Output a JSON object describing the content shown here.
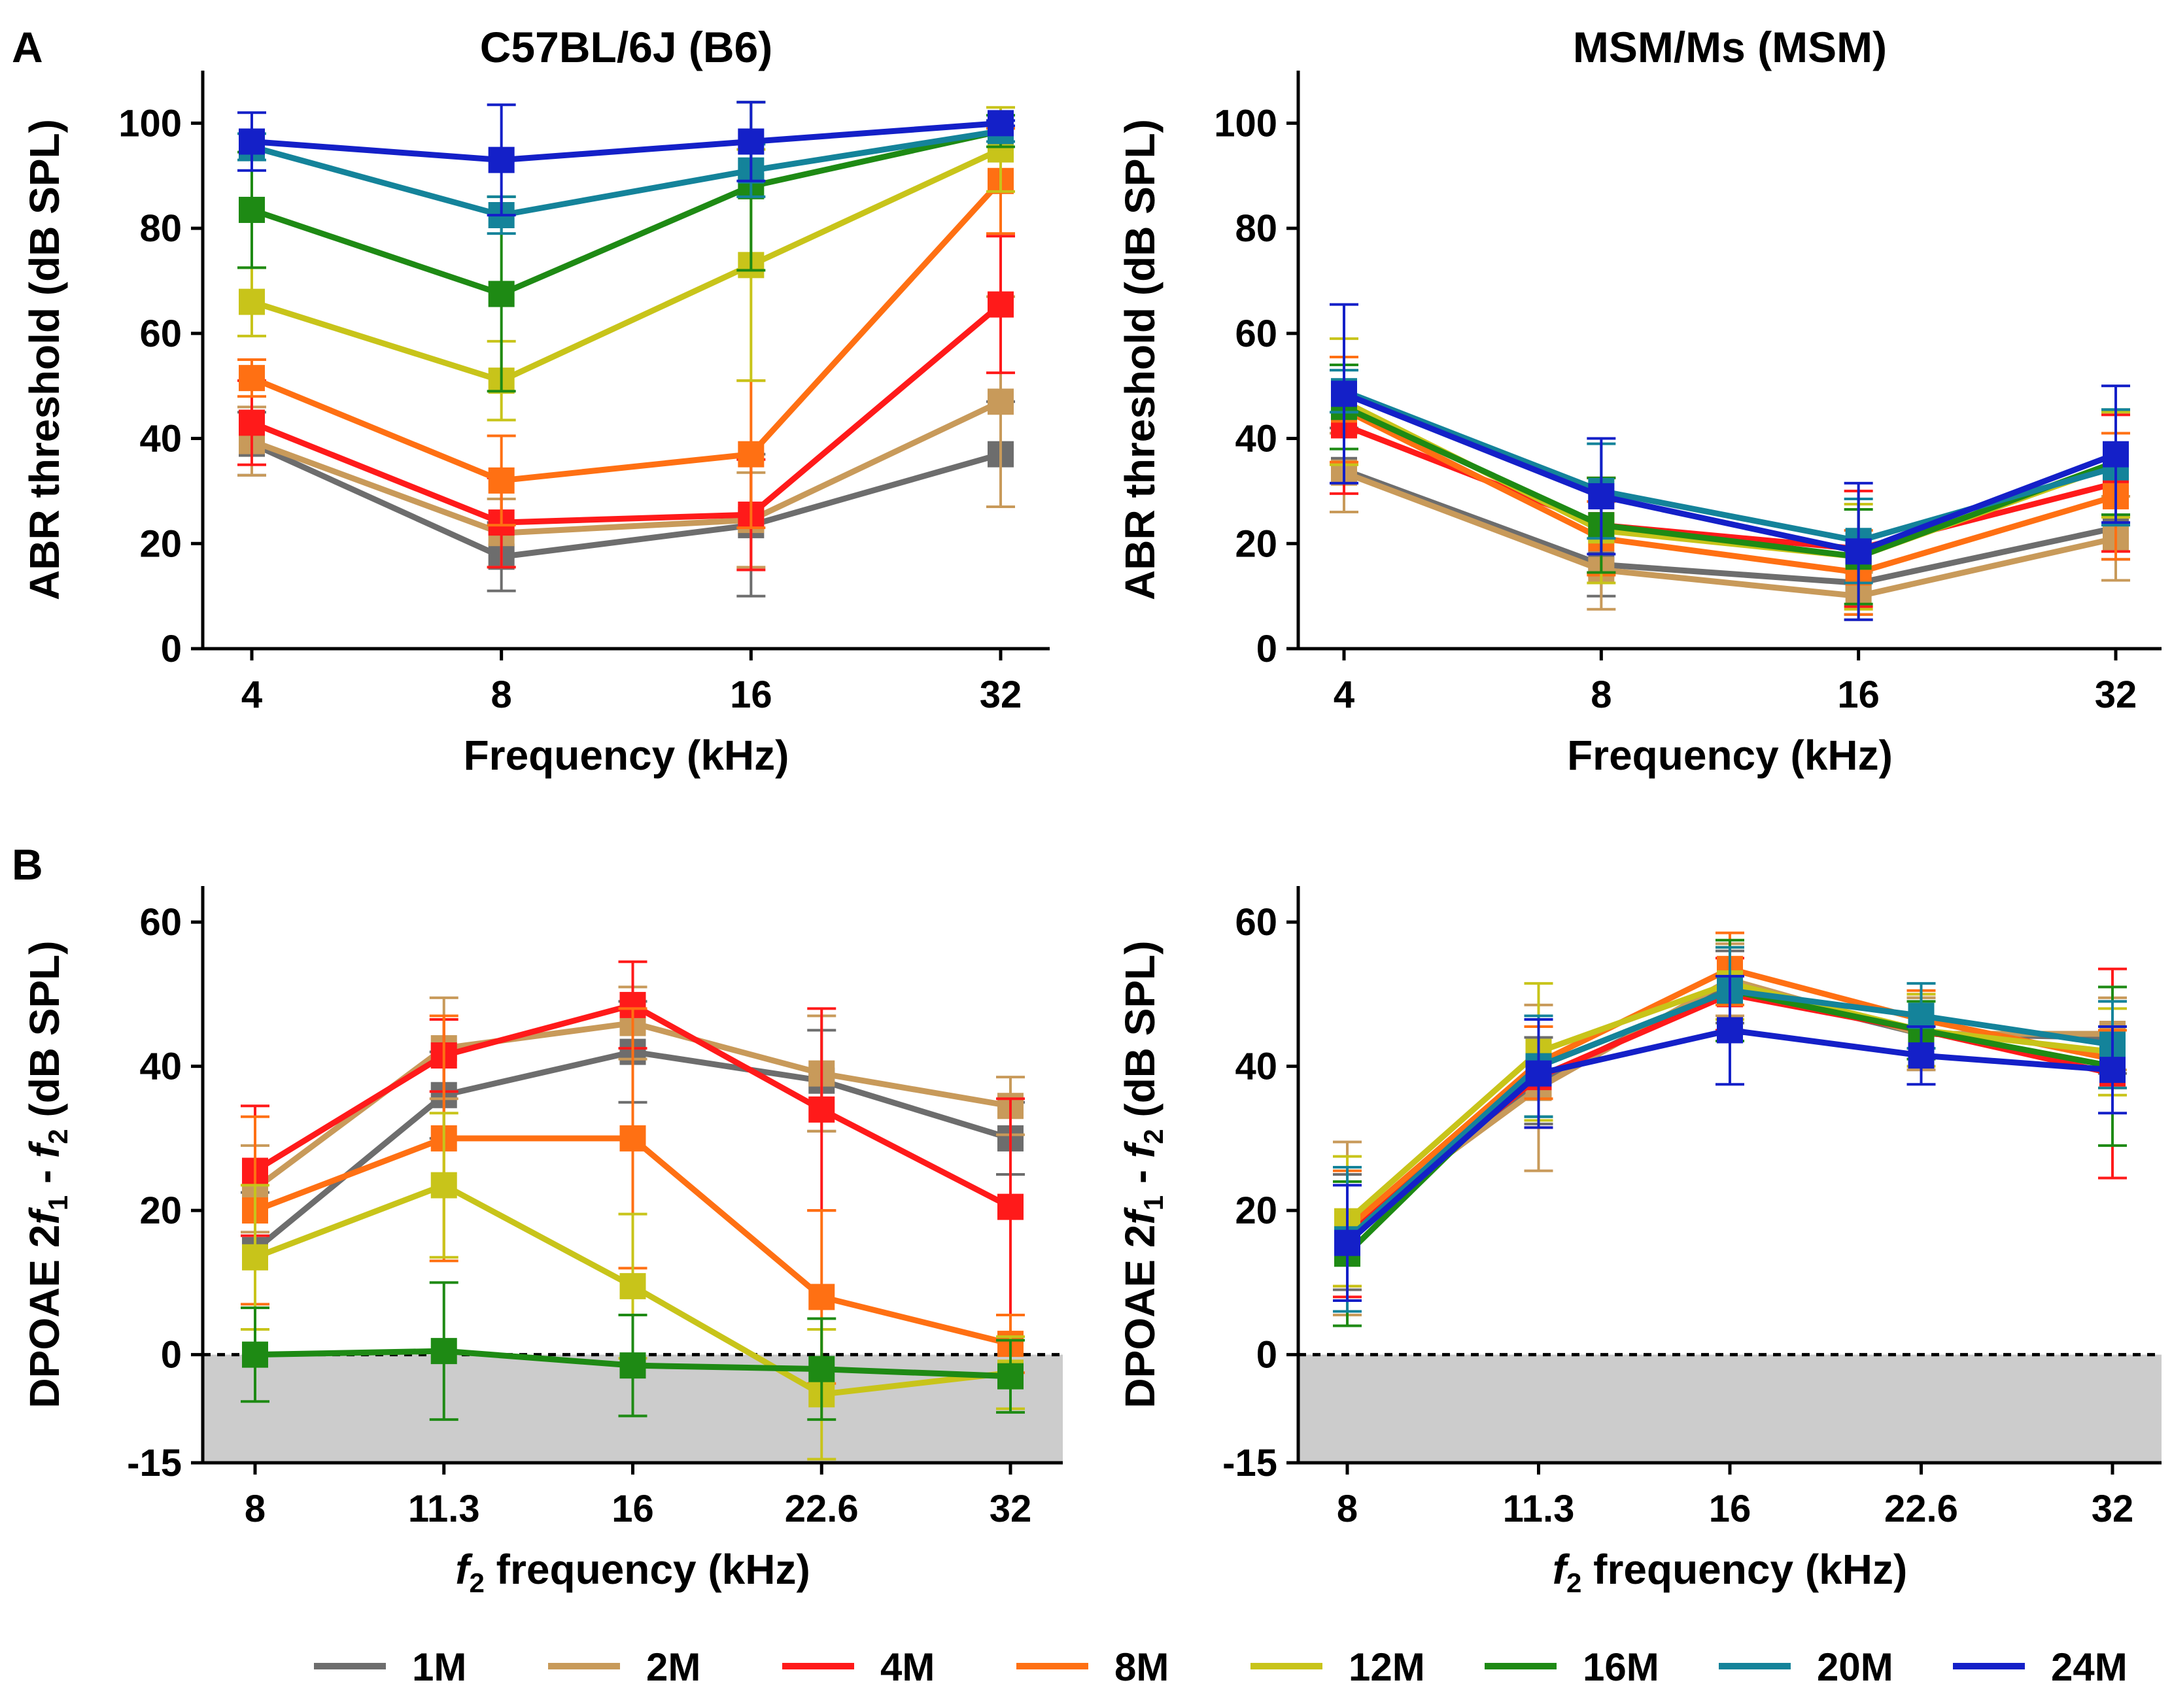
{
  "figure": {
    "panel_labels": [
      "A",
      "B"
    ],
    "legend": {
      "entries": [
        {
          "label": "1M",
          "color": "#6d6d6d"
        },
        {
          "label": "2M",
          "color": "#c89a5a"
        },
        {
          "label": "4M",
          "color": "#ff1a1a"
        },
        {
          "label": "8M",
          "color": "#ff7013"
        },
        {
          "label": "12M",
          "color": "#c8c41a"
        },
        {
          "label": "16M",
          "color": "#1e8a14"
        },
        {
          "label": "20M",
          "color": "#14839a"
        },
        {
          "label": "24M",
          "color": "#1420c8"
        }
      ]
    }
  },
  "chart_data": [
    {
      "id": "A-left",
      "type": "line",
      "title": "C57BL/6J (B6)",
      "xlabel": "Frequency (kHz)",
      "ylabel": "ABR threshold (dB SPL)",
      "categories": [
        "4",
        "8",
        "16",
        "32"
      ],
      "ylim": [
        0,
        110
      ],
      "yticks": [
        0,
        20,
        40,
        60,
        80,
        100
      ],
      "shade_below": null,
      "zero_line": false,
      "series": [
        {
          "name": "1M",
          "values": [
            39,
            17.5,
            23.5,
            37
          ],
          "errors": [
            6,
            6.5,
            13.5,
            10
          ]
        },
        {
          "name": "2M",
          "values": [
            39.5,
            22,
            24.5,
            47
          ],
          "errors": [
            6.5,
            6.5,
            9,
            20
          ]
        },
        {
          "name": "4M",
          "values": [
            43,
            24,
            25.5,
            65.5
          ],
          "errors": [
            8,
            8.5,
            10.5,
            13
          ]
        },
        {
          "name": "8M",
          "values": [
            51.5,
            32,
            37,
            89
          ],
          "errors": [
            3.5,
            8.5,
            14,
            10
          ]
        },
        {
          "name": "12M",
          "values": [
            66,
            51,
            73,
            95
          ],
          "errors": [
            6.5,
            7.5,
            22,
            8
          ]
        },
        {
          "name": "16M",
          "values": [
            83.5,
            67.5,
            88,
            98.5
          ],
          "errors": [
            11,
            18.5,
            16,
            3
          ]
        },
        {
          "name": "20M",
          "values": [
            95.5,
            82.5,
            91,
            98.5
          ],
          "errors": [
            2.5,
            3.5,
            5,
            2
          ]
        },
        {
          "name": "24M",
          "values": [
            96.5,
            93,
            96.5,
            100
          ],
          "errors": [
            5.5,
            10.5,
            7.5,
            0.5
          ]
        }
      ]
    },
    {
      "id": "A-right",
      "type": "line",
      "title": "MSM/Ms (MSM)",
      "xlabel": "Frequency (kHz)",
      "ylabel": "ABR threshold (dB SPL)",
      "categories": [
        "4",
        "8",
        "16",
        "32"
      ],
      "ylim": [
        0,
        110
      ],
      "yticks": [
        0,
        20,
        40,
        60,
        80,
        100
      ],
      "shade_below": null,
      "zero_line": false,
      "series": [
        {
          "name": "1M",
          "values": [
            34,
            16,
            12.5,
            23
          ],
          "errors": [
            8,
            6,
            6,
            6
          ]
        },
        {
          "name": "2M",
          "values": [
            33.5,
            15,
            10,
            21
          ],
          "errors": [
            7.5,
            7.5,
            4.5,
            8
          ]
        },
        {
          "name": "4M",
          "values": [
            42.5,
            23.5,
            19,
            31.5
          ],
          "errors": [
            13,
            9,
            11,
            13
          ]
        },
        {
          "name": "8M",
          "values": [
            45.5,
            21,
            14.5,
            29
          ],
          "errors": [
            10,
            7,
            8,
            12
          ]
        },
        {
          "name": "12M",
          "values": [
            47,
            22.5,
            17.5,
            35
          ],
          "errors": [
            12,
            10,
            10,
            10
          ]
        },
        {
          "name": "16M",
          "values": [
            46,
            23.5,
            17.5,
            35.5
          ],
          "errors": [
            8,
            9,
            9,
            10
          ]
        },
        {
          "name": "20M",
          "values": [
            49,
            30,
            20.5,
            34.5
          ],
          "errors": [
            4,
            9,
            8,
            11
          ]
        },
        {
          "name": "24M",
          "values": [
            48.5,
            29,
            18.5,
            37
          ],
          "errors": [
            17,
            11,
            13,
            13
          ]
        }
      ]
    },
    {
      "id": "B-left",
      "type": "line",
      "title": "",
      "xlabel": "f2 frequency (kHz)",
      "ylabel": "DPOAE 2f1 - f2 (dB SPL)",
      "categories": [
        "8",
        "11.3",
        "16",
        "22.6",
        "32"
      ],
      "ylim": [
        -15,
        65
      ],
      "yticks": [
        -15,
        0,
        20,
        40,
        60
      ],
      "shade_below": 0,
      "zero_line": true,
      "series": [
        {
          "name": "1M",
          "values": [
            14.5,
            36,
            42,
            38,
            30
          ],
          "errors": [
            8,
            6,
            7,
            7,
            5
          ]
        },
        {
          "name": "2M",
          "values": [
            23,
            42.5,
            46,
            39,
            34.5
          ],
          "errors": [
            6,
            7,
            5,
            8,
            4
          ]
        },
        {
          "name": "4M",
          "values": [
            25.5,
            41.5,
            48.5,
            34,
            20.5
          ],
          "errors": [
            9,
            5,
            6,
            14,
            15
          ]
        },
        {
          "name": "8M",
          "values": [
            20,
            30,
            30,
            8,
            1.5
          ],
          "errors": [
            13,
            17,
            18,
            12,
            4
          ]
        },
        {
          "name": "12M",
          "values": [
            13.5,
            23.5,
            9.5,
            -5.5,
            -2.5
          ],
          "errors": [
            10,
            10,
            10,
            9,
            5
          ]
        },
        {
          "name": "16M",
          "values": [
            0,
            0.5,
            -1.5,
            -2,
            -3
          ],
          "errors": [
            6.5,
            9.5,
            7,
            7,
            5
          ]
        }
      ]
    },
    {
      "id": "B-right",
      "type": "line",
      "title": "",
      "xlabel": "f2 frequency (kHz)",
      "ylabel": "DPOAE 2f1 - f2 (dB SPL)",
      "categories": [
        "8",
        "11.3",
        "16",
        "22.6",
        "32"
      ],
      "ylim": [
        -15,
        65
      ],
      "yticks": [
        -15,
        0,
        20,
        40,
        60
      ],
      "shade_below": 0,
      "zero_line": true,
      "series": [
        {
          "name": "1M",
          "values": [
            17,
            38,
            51,
            44.5,
            44
          ],
          "errors": [
            8,
            6,
            5,
            5,
            5
          ]
        },
        {
          "name": "2M",
          "values": [
            17.5,
            37,
            52,
            44.5,
            44.5
          ],
          "errors": [
            12,
            11.5,
            5,
            5,
            5
          ]
        },
        {
          "name": "4M",
          "values": [
            17,
            38.5,
            50,
            45,
            39
          ],
          "errors": [
            9,
            7,
            5,
            5,
            14.5
          ]
        },
        {
          "name": "8M",
          "values": [
            17.5,
            40.5,
            53.5,
            46.5,
            41
          ],
          "errors": [
            8,
            5,
            5,
            4,
            4
          ]
        },
        {
          "name": "12M",
          "values": [
            18.5,
            42,
            51.5,
            45,
            42
          ],
          "errors": [
            9,
            9.5,
            5,
            5,
            6
          ]
        },
        {
          "name": "16M",
          "values": [
            14,
            40,
            50.5,
            45,
            40
          ],
          "errors": [
            10,
            7,
            7,
            4,
            11
          ]
        },
        {
          "name": "20M",
          "values": [
            16,
            40,
            50.5,
            47,
            43
          ],
          "errors": [
            10,
            7,
            6,
            4.5,
            6
          ]
        },
        {
          "name": "24M",
          "values": [
            15.5,
            39,
            45,
            41.5,
            39.5
          ],
          "errors": [
            8,
            7.5,
            7.5,
            4,
            6
          ]
        }
      ]
    }
  ]
}
